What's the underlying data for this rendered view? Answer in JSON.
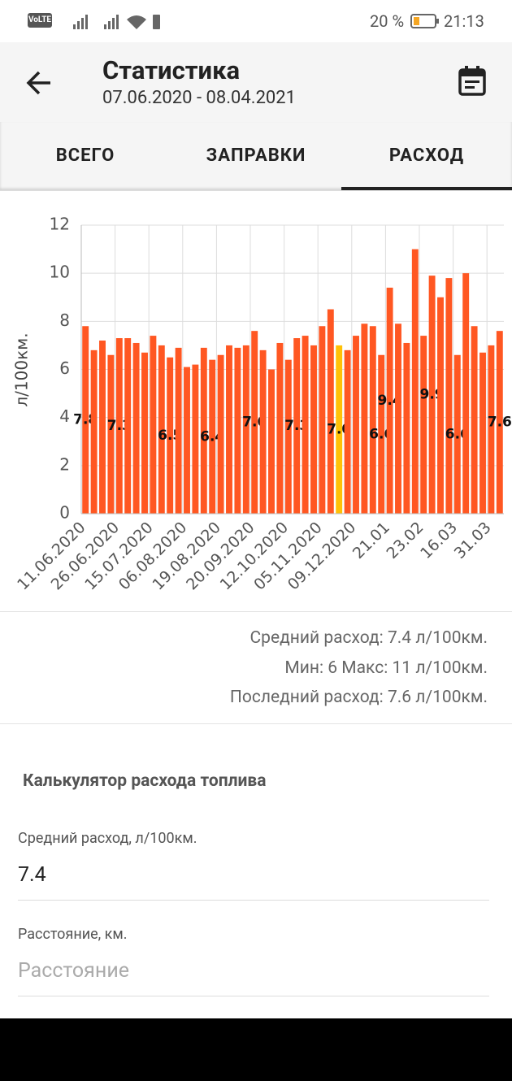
{
  "status_bar": {
    "volte": "VoLTE",
    "battery": "20 %",
    "time": "21:13"
  },
  "app_bar": {
    "title": "Статистика",
    "subtitle": "07.06.2020 - 08.04.2021"
  },
  "tabs": [
    "ВСЕГО",
    "ЗАПРАВКИ",
    "РАСХОД"
  ],
  "chart_data": {
    "type": "bar",
    "y_label": "л/100км.",
    "categories": [
      "11.06.2020",
      null,
      null,
      null,
      "26.06.2020",
      null,
      null,
      null,
      "15.07.2020",
      null,
      null,
      null,
      "06.08.2020",
      null,
      null,
      null,
      "19.08.2020",
      null,
      null,
      null,
      "20.09.2020",
      null,
      null,
      null,
      "12.10.2020",
      null,
      null,
      null,
      "05.11.2020",
      null,
      null,
      null,
      "09.12.2020",
      null,
      null,
      null,
      "21.01",
      null,
      null,
      null,
      "23.02",
      null,
      null,
      null,
      "16.03",
      null,
      null,
      null,
      "31.03",
      null
    ],
    "values": [
      7.8,
      6.8,
      7.2,
      6.6,
      7.3,
      7.3,
      7.1,
      6.7,
      7.4,
      7.0,
      6.5,
      6.9,
      6.1,
      6.2,
      6.9,
      6.4,
      6.6,
      7.0,
      6.9,
      7.0,
      7.6,
      6.8,
      6.0,
      7.1,
      6.4,
      7.3,
      7.4,
      7.0,
      7.8,
      8.5,
      7.0,
      6.8,
      7.4,
      7.9,
      7.8,
      6.6,
      9.4,
      7.9,
      7.1,
      11.0,
      7.4,
      9.9,
      9.0,
      9.8,
      6.6,
      10.0,
      7.8,
      6.7,
      7.0,
      7.6
    ],
    "value_labels": [
      "7.8",
      null,
      null,
      null,
      "7.3",
      null,
      null,
      null,
      null,
      null,
      "6.5",
      null,
      null,
      null,
      null,
      "6.4",
      null,
      null,
      null,
      null,
      "7.6",
      null,
      null,
      null,
      null,
      "7.3",
      null,
      null,
      null,
      null,
      "7.0",
      null,
      null,
      null,
      null,
      "6.6",
      "9.4",
      null,
      null,
      null,
      null,
      "9.9",
      null,
      null,
      "6.6",
      null,
      null,
      null,
      null,
      "7.6"
    ],
    "color": "#ff5722",
    "highlight_index": 30,
    "highlight_color": "#ffc107",
    "ylim": [
      0,
      12
    ],
    "yticks": [
      0,
      2,
      4,
      6,
      8,
      10,
      12
    ],
    "grid": true
  },
  "stats": [
    "Средний расход: 7.4 л/100км.",
    "Мин: 6 Макс: 11 л/100км.",
    "Последний расход: 7.6 л/100км."
  ],
  "calculator": {
    "title": "Калькулятор расхода топлива",
    "avg_label": "Средний расход, л/100км.",
    "avg_value": "7.4",
    "distance_label": "Расстояние, км.",
    "distance_placeholder": "Расстояние"
  }
}
